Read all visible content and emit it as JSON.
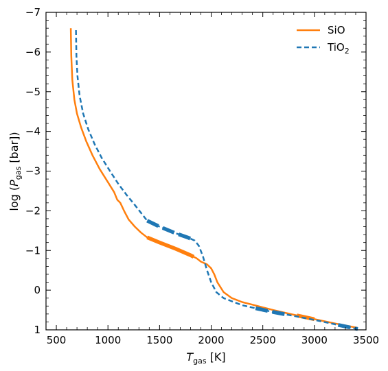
{
  "chart_data": {
    "type": "line",
    "xlabel": {
      "main": "T",
      "sub": "gas",
      "unit": " [K]"
    },
    "ylabel": {
      "pre": "log (",
      "main": "P",
      "sub": "gas",
      "unit": " [bar])"
    },
    "xlim": [
      400,
      3500
    ],
    "ylim": [
      1,
      -7
    ],
    "y_inverted": true,
    "x_ticks": [
      500,
      1000,
      1500,
      2000,
      2500,
      3000,
      3500
    ],
    "x_tick_labels": [
      "500",
      "1000",
      "1500",
      "2000",
      "2500",
      "3000",
      "3500"
    ],
    "y_ticks": [
      -7,
      -6,
      -5,
      -4,
      -3,
      -2,
      -1,
      0,
      1
    ],
    "y_tick_labels": [
      "−7",
      "−6",
      "−5",
      "−4",
      "−3",
      "−2",
      "−1",
      "0",
      "1"
    ],
    "grid": false,
    "legend_position": "top-right",
    "series": [
      {
        "name": "SiO",
        "name_main": "SiO",
        "name_sub": "",
        "color": "#ff7f0e",
        "style": "solid",
        "points": [
          [
            640,
            -6.6
          ],
          [
            645,
            -5.9
          ],
          [
            655,
            -5.3
          ],
          [
            675,
            -4.8
          ],
          [
            700,
            -4.45
          ],
          [
            740,
            -4.1
          ],
          [
            790,
            -3.75
          ],
          [
            850,
            -3.4
          ],
          [
            920,
            -3.05
          ],
          [
            1000,
            -2.72
          ],
          [
            1060,
            -2.47
          ],
          [
            1090,
            -2.28
          ],
          [
            1120,
            -2.2
          ],
          [
            1160,
            -1.98
          ],
          [
            1200,
            -1.78
          ],
          [
            1260,
            -1.6
          ],
          [
            1320,
            -1.45
          ],
          [
            1380,
            -1.33
          ],
          [
            1500,
            -1.2
          ],
          [
            1650,
            -1.05
          ],
          [
            1800,
            -0.88
          ],
          [
            1860,
            -0.8
          ],
          [
            1900,
            -0.72
          ],
          [
            1960,
            -0.65
          ],
          [
            2000,
            -0.55
          ],
          [
            2030,
            -0.4
          ],
          [
            2060,
            -0.2
          ],
          [
            2120,
            0.05
          ],
          [
            2200,
            0.2
          ],
          [
            2300,
            0.3
          ],
          [
            2420,
            0.38
          ],
          [
            2600,
            0.5
          ],
          [
            2800,
            0.62
          ],
          [
            3000,
            0.73
          ],
          [
            3200,
            0.84
          ],
          [
            3420,
            0.95
          ]
        ],
        "thick_segments": [
          [
            1380,
            1830
          ],
          [
            2830,
            3000
          ]
        ]
      },
      {
        "name": "TiO2",
        "name_main": "TiO",
        "name_sub": "2",
        "color": "#1f77b4",
        "style": "dashed",
        "points": [
          [
            690,
            -6.55
          ],
          [
            695,
            -5.9
          ],
          [
            705,
            -5.4
          ],
          [
            725,
            -4.9
          ],
          [
            760,
            -4.45
          ],
          [
            810,
            -4.05
          ],
          [
            870,
            -3.68
          ],
          [
            940,
            -3.33
          ],
          [
            1020,
            -3.0
          ],
          [
            1100,
            -2.68
          ],
          [
            1180,
            -2.4
          ],
          [
            1250,
            -2.18
          ],
          [
            1320,
            -1.95
          ],
          [
            1380,
            -1.75
          ],
          [
            1500,
            -1.6
          ],
          [
            1650,
            -1.44
          ],
          [
            1780,
            -1.32
          ],
          [
            1840,
            -1.25
          ],
          [
            1880,
            -1.12
          ],
          [
            1920,
            -0.85
          ],
          [
            1960,
            -0.5
          ],
          [
            2000,
            -0.2
          ],
          [
            2050,
            0.05
          ],
          [
            2120,
            0.2
          ],
          [
            2200,
            0.28
          ],
          [
            2300,
            0.38
          ],
          [
            2420,
            0.45
          ],
          [
            2600,
            0.55
          ],
          [
            2800,
            0.65
          ],
          [
            3000,
            0.75
          ],
          [
            3200,
            0.86
          ],
          [
            3420,
            0.98
          ]
        ],
        "thick_segments": [
          [
            1380,
            1800
          ],
          [
            2430,
            2720
          ],
          [
            3230,
            3420
          ]
        ]
      }
    ]
  }
}
